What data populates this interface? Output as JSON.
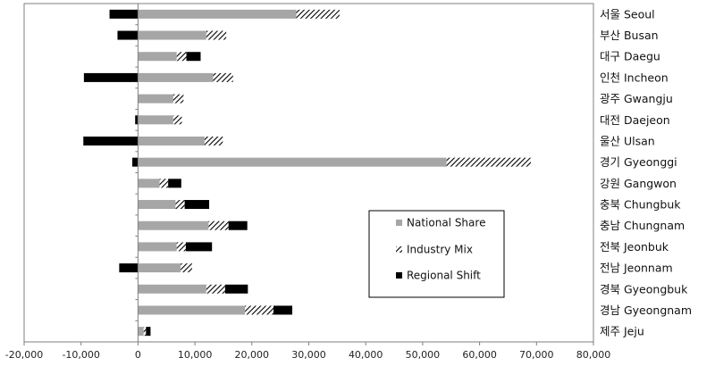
{
  "chart_data": {
    "type": "bar",
    "orientation": "horizontal",
    "stacked": true,
    "title": "",
    "xlabel": "",
    "ylabel": "",
    "xlim": [
      -20000,
      80000
    ],
    "xticks": [
      "-20,000",
      "-10,000",
      "0",
      "10,000",
      "20,000",
      "30,000",
      "40,000",
      "50,000",
      "60,000",
      "70,000",
      "80,000"
    ],
    "grid": false,
    "legend": {
      "placement": "center-right"
    },
    "categories": [
      "서울 Seoul",
      "부산 Busan",
      "대구 Daegu",
      "인천 Incheon",
      "광주 Gwangju",
      "대전 Daejeon",
      "울산 Ulsan",
      "경기 Gyeonggi",
      "강원 Gangwon",
      "충북 Chungbuk",
      "충남 Chungnam",
      "전북 Jeonbuk",
      "전남 Jeonnam",
      "경북 Gyeongbuk",
      "경남 Gyeongnam",
      "제주 Jeju"
    ],
    "series": [
      {
        "name": "National Share",
        "color": "#a6a6a6",
        "pattern": "solid",
        "values": [
          27800,
          12000,
          6800,
          13200,
          6200,
          6200,
          11700,
          54200,
          3800,
          6600,
          12400,
          6800,
          7500,
          12000,
          18800,
          1000
        ]
      },
      {
        "name": "Industry Mix",
        "pattern": "diagonal-hatch",
        "values": [
          7600,
          3500,
          1700,
          3500,
          1800,
          1500,
          3200,
          14800,
          1500,
          1600,
          3500,
          1600,
          2000,
          3300,
          5000,
          400
        ]
      },
      {
        "name": "Regional Shift",
        "color": "#000000",
        "pattern": "solid",
        "values": [
          -5000,
          -3600,
          2500,
          -9500,
          0,
          -500,
          -9600,
          -1000,
          2300,
          4300,
          3300,
          4600,
          -3300,
          4000,
          3300,
          800
        ]
      }
    ]
  }
}
